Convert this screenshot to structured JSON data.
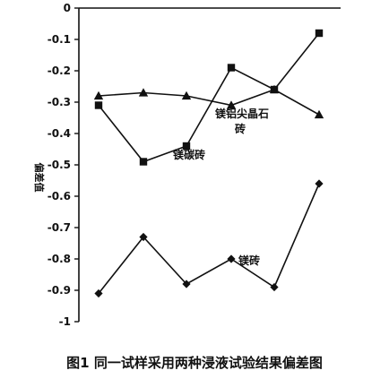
{
  "caption": "图1   同一试样采用两种浸液试验结果偏差图",
  "chart_data": {
    "type": "line",
    "title": "",
    "xlabel": "",
    "ylabel": "偏差值",
    "x": [
      1,
      2,
      3,
      4,
      5,
      6
    ],
    "ylim": [
      -1,
      0
    ],
    "yticks": [
      0,
      -0.1,
      -0.2,
      -0.3,
      -0.4,
      -0.5,
      -0.6,
      -0.7,
      -0.8,
      -0.9,
      -1
    ],
    "ytick_labels": [
      "0",
      "-0.1",
      "-0.2",
      "-0.3",
      "-0.4",
      "-0.5",
      "-0.6",
      "-0.7",
      "-0.8",
      "-0.9",
      "-1"
    ],
    "grid": false,
    "legend": "none",
    "line_color": "#111111",
    "series": [
      {
        "marker": "triangle",
        "values": [
          -0.28,
          -0.27,
          -0.28,
          -0.31,
          -0.26,
          -0.34
        ]
      },
      {
        "marker": "square",
        "values": [
          -0.31,
          -0.49,
          -0.44,
          -0.19,
          -0.26,
          -0.08
        ]
      },
      {
        "marker": "diamond",
        "values": [
          -0.91,
          -0.73,
          -0.88,
          -0.8,
          -0.89,
          -0.56
        ]
      }
    ],
    "annotations": [
      {
        "lines": [
          "镁铝尖晶石",
          "砖"
        ]
      },
      {
        "lines": [
          "镁碳砖"
        ]
      },
      {
        "lines": [
          "镁砖"
        ]
      }
    ]
  }
}
